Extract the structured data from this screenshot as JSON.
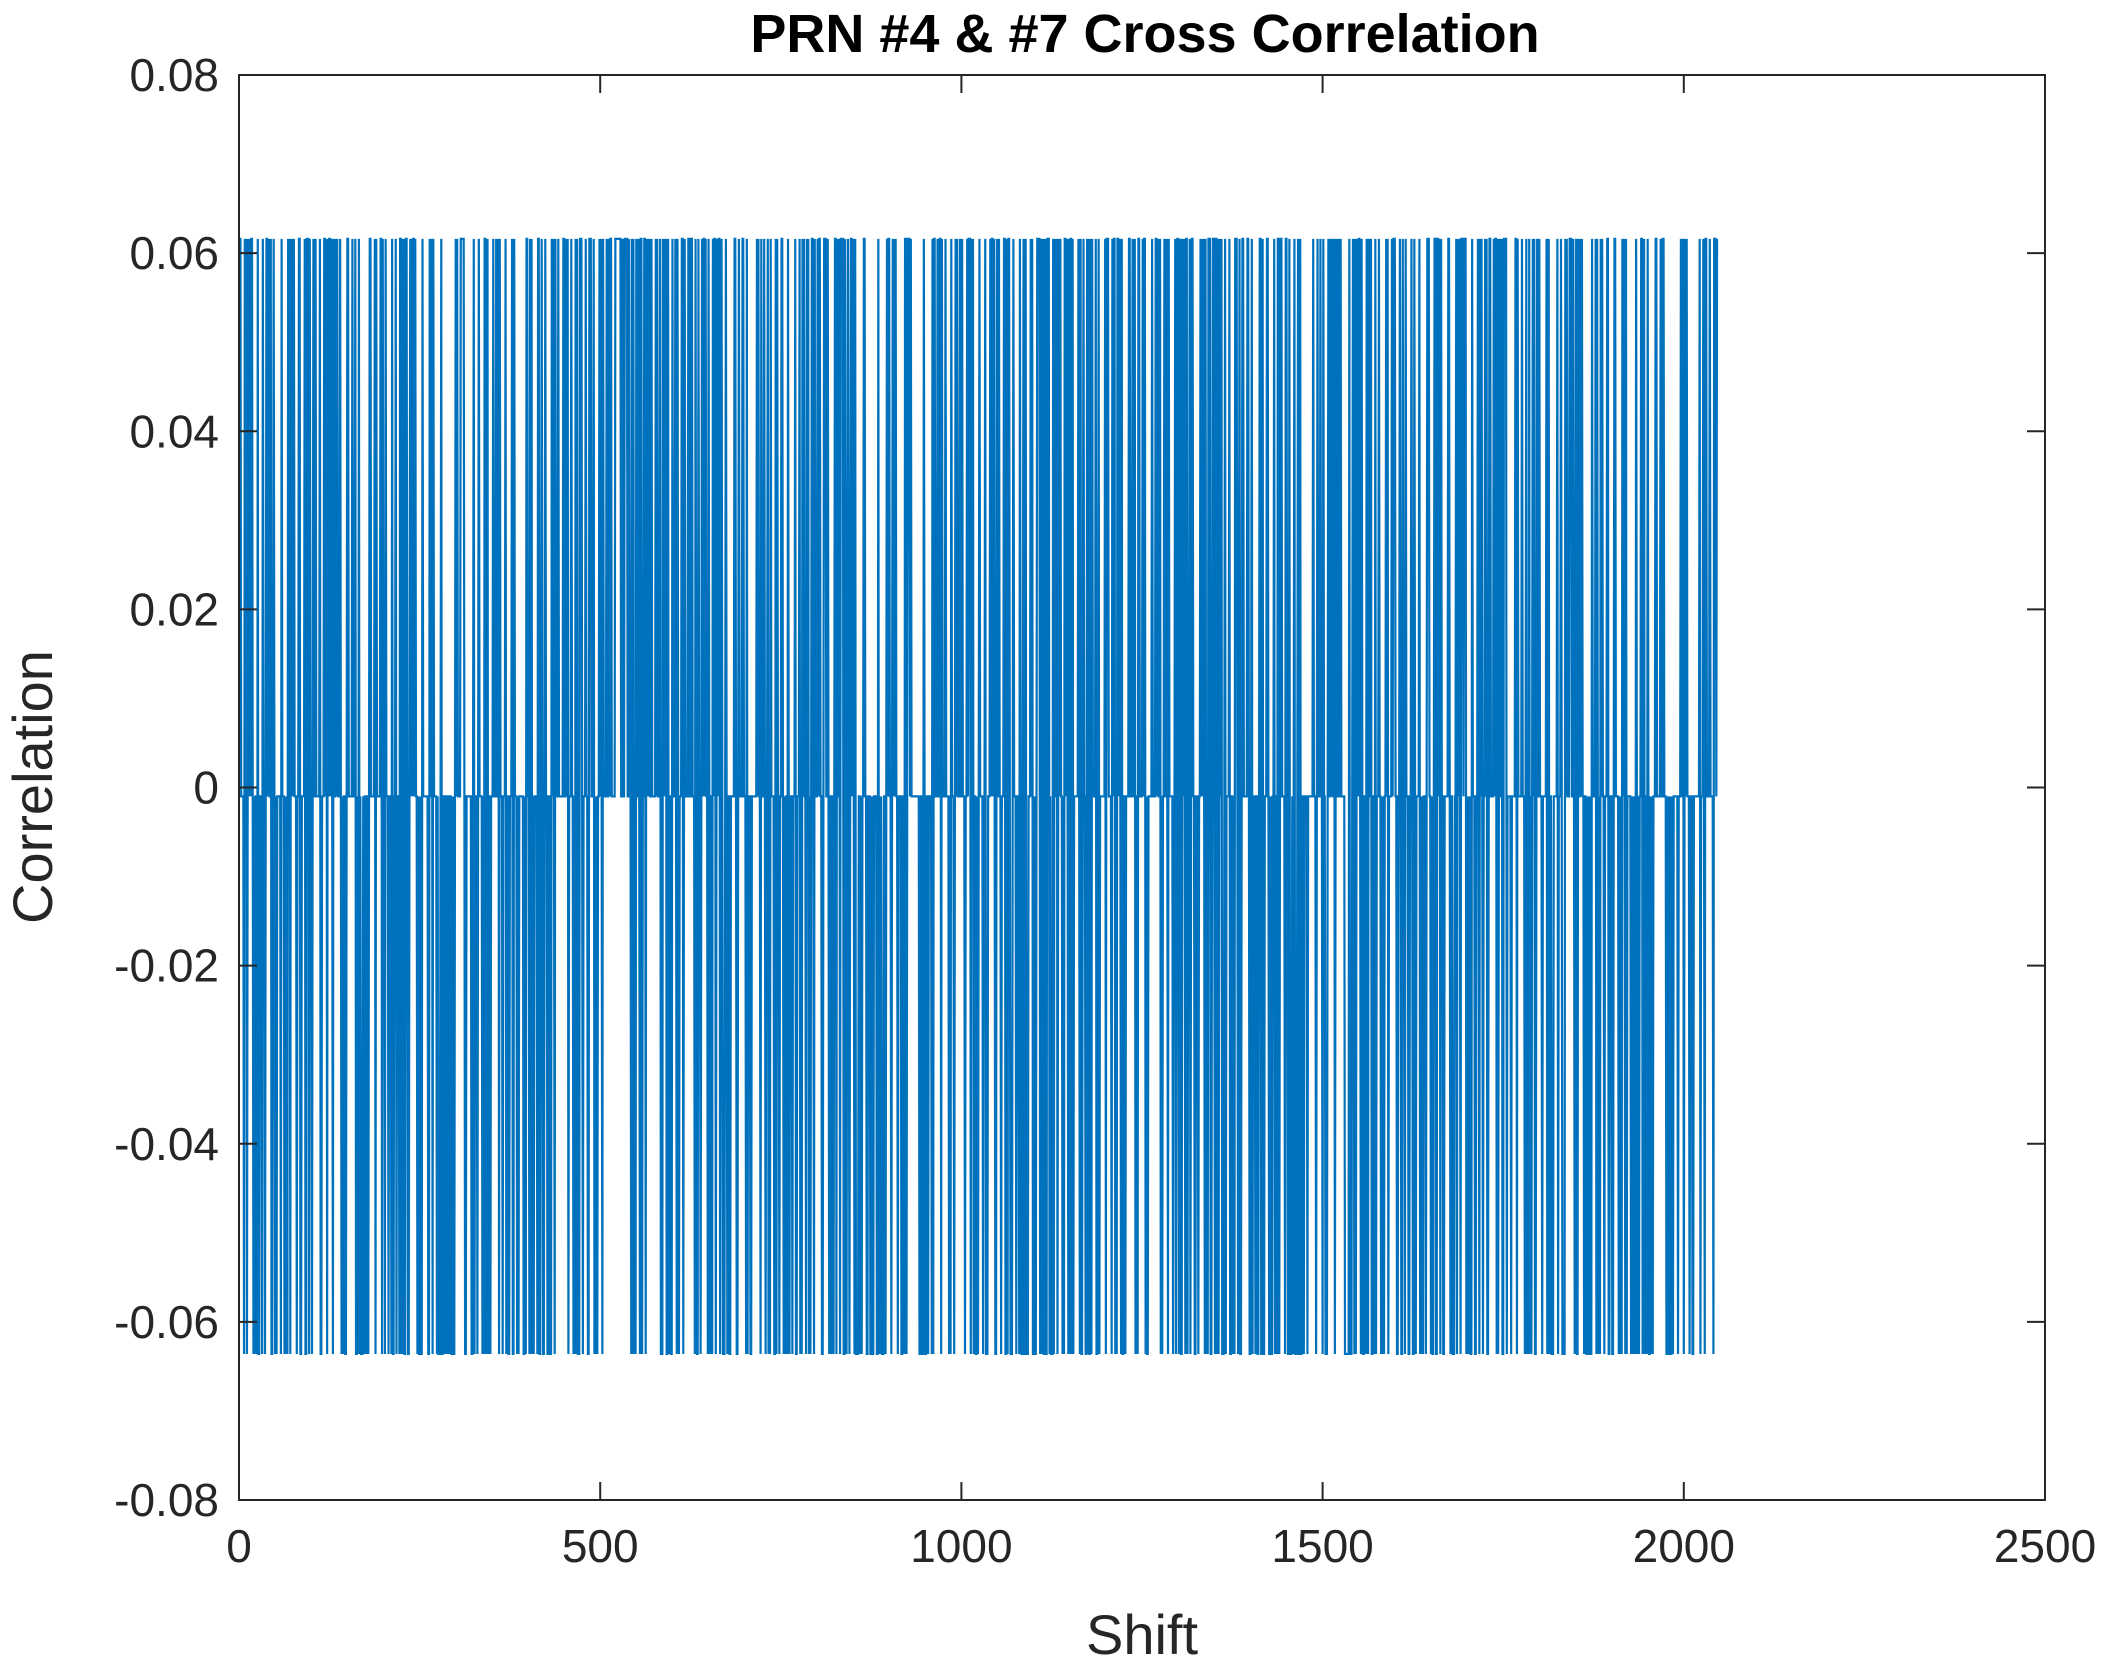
{
  "chart_data": {
    "type": "line",
    "title": "PRN #4 & #7 Cross Correlation",
    "xlabel": "Shift",
    "ylabel": "Correlation",
    "xlim": [
      0,
      2500
    ],
    "ylim": [
      -0.08,
      0.08
    ],
    "x_ticks": [
      "0",
      "500",
      "1000",
      "1500",
      "2000",
      "2500"
    ],
    "y_ticks": [
      "0.08",
      "0.06",
      "0.04",
      "0.02",
      "0",
      "-0.02",
      "-0.04",
      "-0.06",
      "-0.08"
    ],
    "grid": false,
    "series": [
      {
        "color": "#0072BD",
        "x_start": 1,
        "x_end": 2046,
        "levels": [
          0.0616,
          -0.001,
          -0.0636
        ],
        "samples": 2046
      }
    ]
  }
}
